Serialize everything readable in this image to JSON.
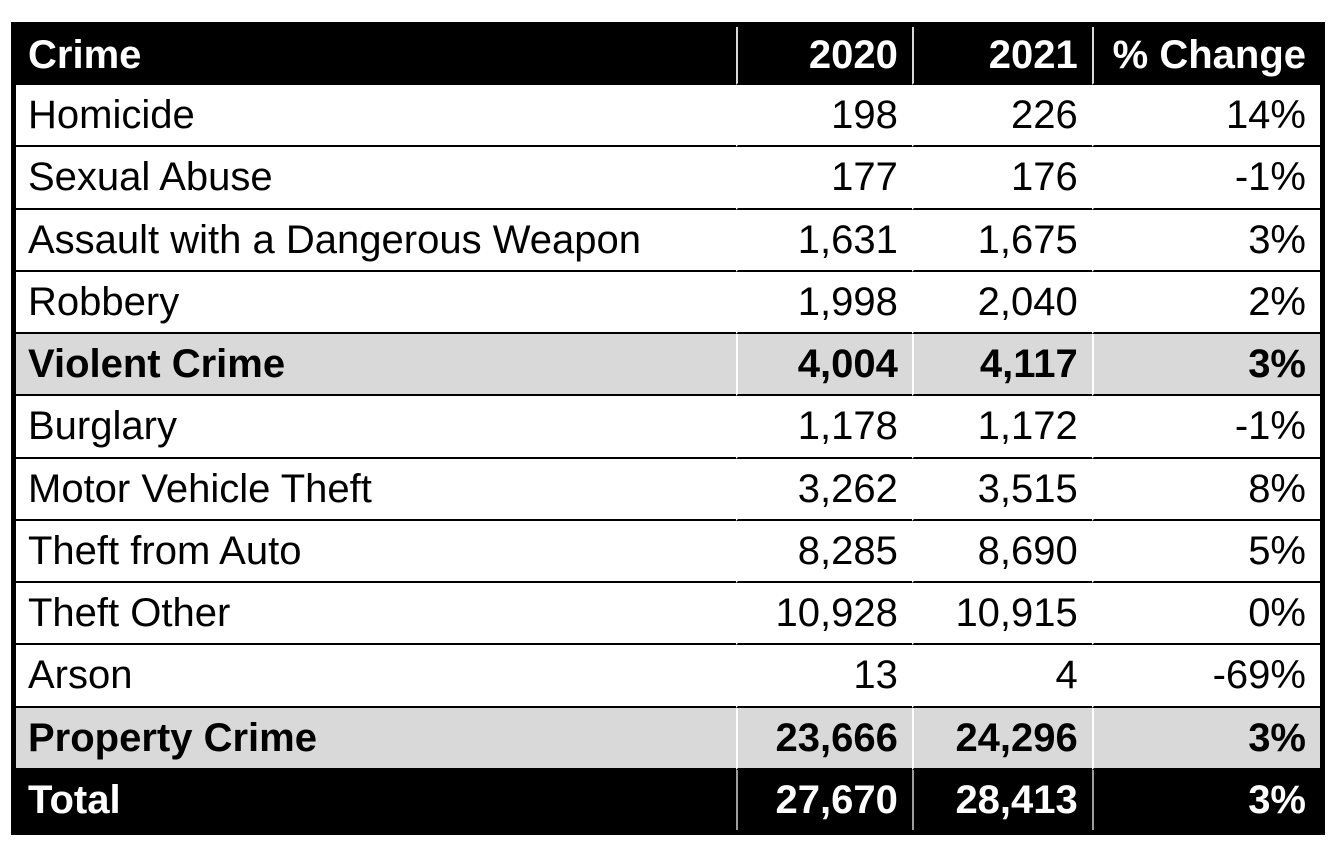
{
  "table": {
    "columns": [
      "Crime",
      "2020",
      "2021",
      "% Change"
    ],
    "rows": [
      {
        "style": "normal",
        "cells": [
          "Homicide",
          "198",
          "226",
          "14%"
        ]
      },
      {
        "style": "normal",
        "cells": [
          "Sexual Abuse",
          "177",
          "176",
          "-1%"
        ]
      },
      {
        "style": "normal",
        "cells": [
          "Assault with a Dangerous Weapon",
          "1,631",
          "1,675",
          "3%"
        ]
      },
      {
        "style": "normal",
        "cells": [
          "Robbery",
          "1,998",
          "2,040",
          "2%"
        ]
      },
      {
        "style": "subtotal",
        "cells": [
          "Violent Crime",
          "4,004",
          "4,117",
          "3%"
        ]
      },
      {
        "style": "normal",
        "cells": [
          "Burglary",
          "1,178",
          "1,172",
          "-1%"
        ]
      },
      {
        "style": "normal",
        "cells": [
          "Motor Vehicle Theft",
          "3,262",
          "3,515",
          "8%"
        ]
      },
      {
        "style": "normal",
        "cells": [
          "Theft from Auto",
          "8,285",
          "8,690",
          "5%"
        ]
      },
      {
        "style": "normal",
        "cells": [
          "Theft Other",
          "10,928",
          "10,915",
          "0%"
        ]
      },
      {
        "style": "normal",
        "cells": [
          "Arson",
          "13",
          "4",
          "-69%"
        ]
      },
      {
        "style": "subtotal",
        "cells": [
          "Property Crime",
          "23,666",
          "24,296",
          "3%"
        ]
      },
      {
        "style": "total",
        "cells": [
          "Total",
          "27,670",
          "28,413",
          "3%"
        ]
      }
    ]
  },
  "colors": {
    "header_bg": "#000000",
    "header_text": "#ffffff",
    "subtotal_bg": "#d9d9d9",
    "row_bg": "#ffffff",
    "total_bg": "#000000",
    "total_text": "#ffffff",
    "body_text": "#000000",
    "border": "#000000"
  },
  "chart_data": {
    "type": "table",
    "title": "Crime counts 2020 vs 2021 with percent change",
    "columns": [
      "Crime",
      "2020",
      "2021",
      "% Change"
    ],
    "rows": [
      {
        "crime": "Homicide",
        "y2020": 198,
        "y2021": 226,
        "pct_change": "14%",
        "row_type": "detail"
      },
      {
        "crime": "Sexual Abuse",
        "y2020": 177,
        "y2021": 176,
        "pct_change": "-1%",
        "row_type": "detail"
      },
      {
        "crime": "Assault with a Dangerous Weapon",
        "y2020": 1631,
        "y2021": 1675,
        "pct_change": "3%",
        "row_type": "detail"
      },
      {
        "crime": "Robbery",
        "y2020": 1998,
        "y2021": 2040,
        "pct_change": "2%",
        "row_type": "detail"
      },
      {
        "crime": "Violent Crime",
        "y2020": 4004,
        "y2021": 4117,
        "pct_change": "3%",
        "row_type": "subtotal"
      },
      {
        "crime": "Burglary",
        "y2020": 1178,
        "y2021": 1172,
        "pct_change": "-1%",
        "row_type": "detail"
      },
      {
        "crime": "Motor Vehicle Theft",
        "y2020": 3262,
        "y2021": 3515,
        "pct_change": "8%",
        "row_type": "detail"
      },
      {
        "crime": "Theft from Auto",
        "y2020": 8285,
        "y2021": 8690,
        "pct_change": "5%",
        "row_type": "detail"
      },
      {
        "crime": "Theft Other",
        "y2020": 10928,
        "y2021": 10915,
        "pct_change": "0%",
        "row_type": "detail"
      },
      {
        "crime": "Arson",
        "y2020": 13,
        "y2021": 4,
        "pct_change": "-69%",
        "row_type": "detail"
      },
      {
        "crime": "Property Crime",
        "y2020": 23666,
        "y2021": 24296,
        "pct_change": "3%",
        "row_type": "subtotal"
      },
      {
        "crime": "Total",
        "y2020": 27670,
        "y2021": 28413,
        "pct_change": "3%",
        "row_type": "total"
      }
    ]
  }
}
